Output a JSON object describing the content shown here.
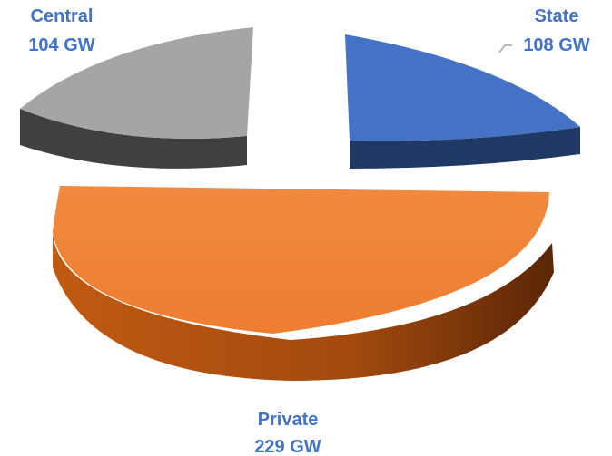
{
  "chart_data": {
    "type": "pie",
    "style": "3d-exploded",
    "slices": [
      {
        "category": "State",
        "value": 108,
        "value_label": "108 GW",
        "color": "#4472C4",
        "side_color": "#1F3864"
      },
      {
        "category": "Private",
        "value": 229,
        "value_label": "229 GW",
        "color": "#ED7D31",
        "side_color": "#843C0C"
      },
      {
        "category": "Central",
        "value": 104,
        "value_label": "104 GW",
        "color": "#A5A5A5",
        "side_color": "#404040"
      }
    ],
    "label_color": "#4472C4",
    "legend": "none",
    "title": ""
  }
}
